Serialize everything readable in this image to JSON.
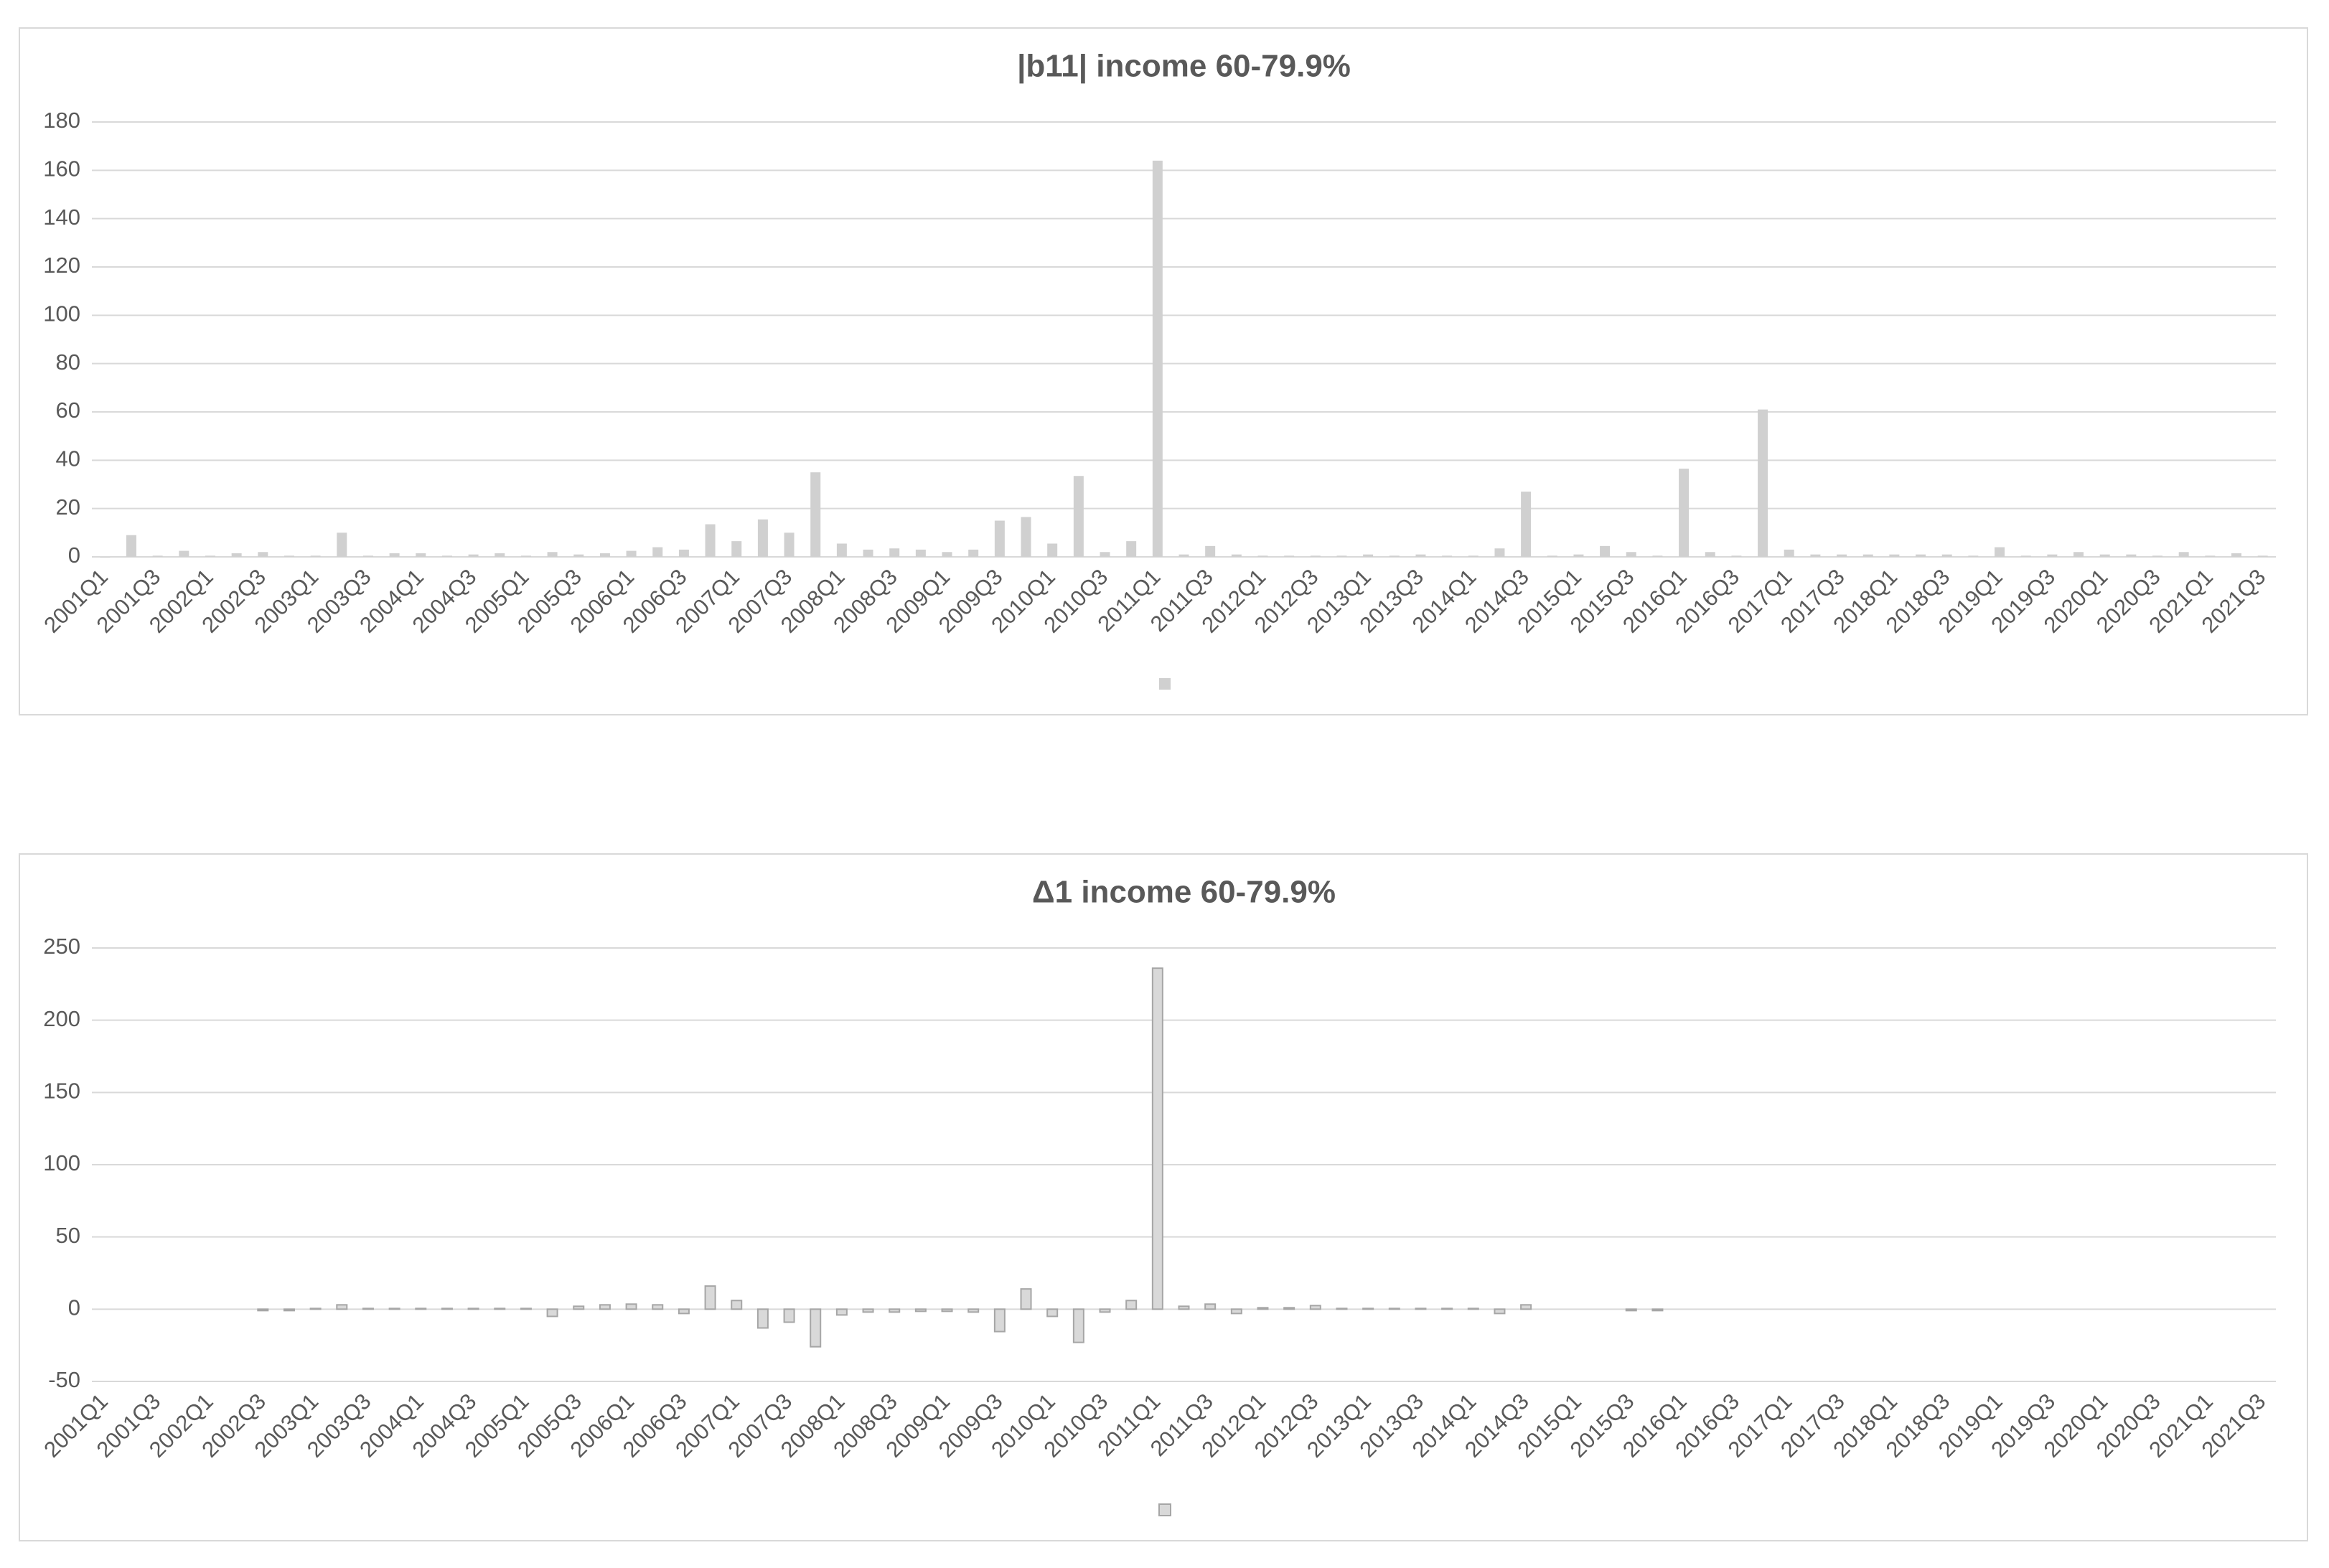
{
  "chart_data": [
    {
      "type": "bar",
      "title": "|b11| income 60-79.9%",
      "categories": [
        "2001Q1",
        null,
        "2001Q3",
        null,
        "2002Q1",
        null,
        "2002Q3",
        null,
        "2003Q1",
        null,
        "2003Q3",
        null,
        "2004Q1",
        null,
        "2004Q3",
        null,
        "2005Q1",
        null,
        "2005Q3",
        null,
        "2006Q1",
        null,
        "2006Q3",
        null,
        "2007Q1",
        null,
        "2007Q3",
        null,
        "2008Q1",
        null,
        "2008Q3",
        null,
        "2009Q1",
        null,
        "2009Q3",
        null,
        "2010Q1",
        null,
        "2010Q3",
        null,
        "2011Q1",
        null,
        "2011Q3",
        null,
        "2012Q1",
        null,
        "2012Q3",
        null,
        "2013Q1",
        null,
        "2013Q3",
        null,
        "2014Q1",
        null,
        "2014Q3",
        null,
        "2015Q1",
        null,
        "2015Q3",
        null,
        "2016Q1",
        null,
        "2016Q3",
        null,
        "2017Q1",
        null,
        "2017Q3",
        null,
        "2018Q1",
        null,
        "2018Q3",
        null,
        "2019Q1",
        null,
        "2019Q3",
        null,
        "2020Q1",
        null,
        "2020Q3",
        null,
        "2021Q1",
        null,
        "2021Q3"
      ],
      "values": [
        0,
        9,
        0.5,
        2.5,
        0.5,
        1.5,
        2,
        0.5,
        0.5,
        10,
        0.5,
        1.5,
        1.5,
        0.5,
        1,
        1.5,
        0.5,
        2,
        1,
        1.5,
        2.5,
        4,
        3,
        13.5,
        6.5,
        15.5,
        10,
        35,
        5.5,
        3,
        3.5,
        3,
        2,
        3,
        15,
        16.5,
        5.5,
        33.5,
        2,
        6.5,
        164,
        1,
        4.5,
        1,
        0.5,
        0.5,
        0.5,
        0.5,
        1,
        0.5,
        1,
        0.5,
        0.5,
        3.5,
        27,
        0.5,
        1,
        4.5,
        2,
        0.5,
        36.5,
        2,
        0.5,
        61,
        3,
        1,
        1,
        1,
        1,
        1,
        1,
        0.5,
        4,
        0.5,
        1,
        2,
        1,
        1,
        0.5,
        2,
        0.5,
        1.5,
        0.5
      ],
      "color": "#d0d0d0",
      "ylim": [
        0,
        180
      ],
      "yticks": [
        0,
        20,
        40,
        60,
        80,
        100,
        120,
        140,
        160,
        180
      ],
      "grid": true
    },
    {
      "type": "bar",
      "title": "Δ1 income 60-79.9%",
      "categories": [
        "2001Q1",
        null,
        "2001Q3",
        null,
        "2002Q1",
        null,
        "2002Q3",
        null,
        "2003Q1",
        null,
        "2003Q3",
        null,
        "2004Q1",
        null,
        "2004Q3",
        null,
        "2005Q1",
        null,
        "2005Q3",
        null,
        "2006Q1",
        null,
        "2006Q3",
        null,
        "2007Q1",
        null,
        "2007Q3",
        null,
        "2008Q1",
        null,
        "2008Q3",
        null,
        "2009Q1",
        null,
        "2009Q3",
        null,
        "2010Q1",
        null,
        "2010Q3",
        null,
        "2011Q1",
        null,
        "2011Q3",
        null,
        "2012Q1",
        null,
        "2012Q3",
        null,
        "2013Q1",
        null,
        "2013Q3",
        null,
        "2014Q1",
        null,
        "2014Q3",
        null,
        "2015Q1",
        null,
        "2015Q3",
        null,
        "2016Q1",
        null,
        "2016Q3",
        null,
        "2017Q1",
        null,
        "2017Q3",
        null,
        "2018Q1",
        null,
        "2018Q3",
        null,
        "2019Q1",
        null,
        "2019Q3",
        null,
        "2020Q1",
        null,
        "2020Q3",
        null,
        "2021Q1",
        null,
        "2021Q3"
      ],
      "values": [
        null,
        null,
        null,
        null,
        null,
        null,
        -1,
        -1,
        0.5,
        3,
        0.5,
        0.5,
        0.5,
        0.5,
        0.5,
        0.5,
        0.5,
        -5,
        2,
        3,
        3.5,
        3,
        -3,
        16,
        6,
        -13,
        -9,
        -26,
        -4,
        -2,
        -2,
        -1.5,
        -1.5,
        -2,
        -15.5,
        14,
        -5,
        -23,
        -2,
        6,
        236,
        2,
        3.5,
        -3,
        1,
        1,
        2.5,
        0.5,
        0.5,
        0.5,
        0.5,
        0.5,
        0.5,
        -3,
        3,
        null,
        null,
        null,
        -1,
        -1,
        null,
        null,
        null,
        null,
        null,
        null,
        null,
        null,
        null,
        null,
        null,
        null,
        null,
        null,
        null,
        null,
        null,
        null,
        null,
        null,
        null,
        null,
        null
      ],
      "color": "#d9d9d9",
      "edgecolor": "#a6a6a6",
      "ylim": [
        -50,
        250
      ],
      "yticks": [
        -50,
        0,
        50,
        100,
        150,
        200,
        250
      ],
      "grid": true
    }
  ]
}
